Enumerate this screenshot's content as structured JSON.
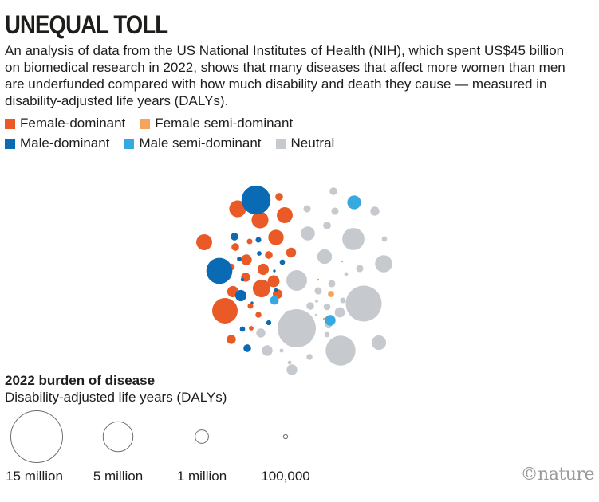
{
  "header": {
    "title": "UNEQUAL TOLL",
    "description": "An analysis of data from the US National Institutes of Health (NIH), which spent US$45 billion on biomedical research in 2022, shows that many diseases that affect more women than men are underfunded compared with how much disability and death they cause — measured in disability-adjusted life years (DALYs)."
  },
  "legend": {
    "female_dominant": "Female-dominant",
    "female_semi_dominant": "Female semi-dominant",
    "male_dominant": "Male-dominant",
    "male_semi_dominant": "Male semi-dominant",
    "neutral": "Neutral"
  },
  "colors": {
    "female_dominant": "#e95a26",
    "female_semi_dominant": "#f4a45b",
    "male_dominant": "#0b6ab4",
    "male_semi_dominant": "#36a9e1",
    "neutral": "#c6c9ce",
    "text": "#1d1d1b",
    "credit": "#9a9a9a"
  },
  "size_key": {
    "title": "2022 burden of disease",
    "subtitle": "Disability-adjusted life years (DALYs)",
    "entries": [
      {
        "label": "15 million",
        "dalys_millions": 15
      },
      {
        "label": "5 million",
        "dalys_millions": 5
      },
      {
        "label": "1 million",
        "dalys_millions": 1
      },
      {
        "label": "100,000",
        "dalys_millions": 0.1
      }
    ]
  },
  "credit": "©nature",
  "chart_data": {
    "type": "bubble",
    "title": "UNEQUAL TOLL",
    "value_unit": "DALYs (millions), estimated from bubble area",
    "series": [
      {
        "name": "Female-dominant",
        "category": "female_dominant",
        "values": [
          3.62,
          1.59,
          1.41,
          1.59,
          1.41,
          0.33,
          0.55,
          1.74,
          1.32,
          0.64,
          0.12,
          0.18,
          0.71,
          0.33,
          0.46,
          0.33,
          0.46,
          0.2,
          0.18,
          0.12,
          0.71,
          0.26,
          0.79,
          0.52
        ]
      },
      {
        "name": "Female semi-dominant",
        "category": "female_semi_dominant",
        "values": [
          0.21,
          0.02,
          0.02,
          0.02
        ]
      },
      {
        "name": "Male-dominant",
        "category": "male_dominant",
        "values": [
          0.33,
          3.79,
          4.69,
          0.33,
          0.18,
          0.16,
          0.12,
          0.12,
          0.04,
          0.16,
          0.04,
          0.07,
          0.07,
          0.14,
          0.71
        ]
      },
      {
        "name": "Male semi-dominant",
        "category": "male_semi_dominant",
        "values": [
          1.05,
          0.43,
          0.64
        ]
      },
      {
        "name": "Neutral",
        "category": "neutral",
        "values": [
          0.64,
          0.64,
          0.46,
          1.09,
          2.74,
          0.29,
          0.32,
          0.29,
          0.46,
          0.33,
          0.08,
          1.65,
          0.29,
          1.2,
          2.38,
          0.29,
          0.29,
          0.18,
          0.26,
          0.05,
          0.26,
          0.32,
          0.02,
          0.16,
          0.21,
          0.04,
          0.09,
          0.2,
          0.16,
          7.2,
          0.46,
          0.08,
          8.17,
          0.09,
          0.57,
          4.97,
          1.17,
          0.79
        ]
      }
    ]
  }
}
